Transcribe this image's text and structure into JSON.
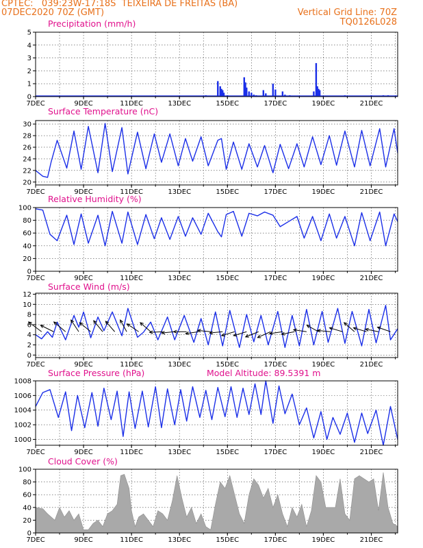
{
  "header": {
    "line1_left": "CPTEC:   039:23W-17:18S  TEIXEIRA DE FREITAS (BA)",
    "line2_left": "07DEC2020 70Z (GMT)",
    "line2_right": "Vertical Grid Line: 70Z",
    "line3_right": "TQ0126L028",
    "model_altitude": "Model Altitude: 89.5391 m"
  },
  "colors": {
    "text": "#e8701a",
    "title": "#e0108c",
    "line": "#1a2ee8",
    "bar": "#1a2ee8",
    "cloud": "#a9a9a9"
  },
  "x_axis": {
    "tick_labels": [
      "7DEC",
      "9DEC",
      "11DEC",
      "13DEC",
      "15DEC",
      "17DEC",
      "19DEC",
      "21DEC"
    ],
    "start_day": 7,
    "end_day": 22.1
  },
  "chart_data": [
    {
      "id": "precip",
      "type": "bar",
      "title": "Precipitation (mm/h)",
      "ylim": [
        0,
        5
      ],
      "yticks": [
        0,
        1,
        2,
        3,
        4,
        5
      ],
      "x_day": [
        14.1,
        14.6,
        14.7,
        14.75,
        14.8,
        14.85,
        15.0,
        15.7,
        15.75,
        15.8,
        15.9,
        16.0,
        16.1,
        16.2,
        16.5,
        16.6,
        16.9,
        17.0,
        17.3,
        17.4,
        17.6,
        18.6,
        18.7,
        18.75,
        18.8,
        18.85,
        19.9,
        21.0,
        21.5,
        21.7
      ],
      "values": [
        0.1,
        1.2,
        0.8,
        0.6,
        0.5,
        0.3,
        0.1,
        1.5,
        1.1,
        0.7,
        0.4,
        0.3,
        0.15,
        0.1,
        0.5,
        0.25,
        1.0,
        0.55,
        0.4,
        0.15,
        0.1,
        0.4,
        2.6,
        0.8,
        0.6,
        0.5,
        0.1,
        0.1,
        0.1,
        0.1
      ]
    },
    {
      "id": "temp",
      "type": "line",
      "title": "Surface Temperature (nC)",
      "ylim": [
        19.5,
        30.6
      ],
      "yticks": [
        20,
        22,
        24,
        26,
        28,
        30
      ],
      "x_day": [
        7.0,
        7.3,
        7.5,
        7.65,
        7.9,
        8.3,
        8.6,
        8.9,
        9.2,
        9.6,
        9.9,
        10.2,
        10.6,
        10.85,
        11.25,
        11.6,
        11.95,
        12.25,
        12.6,
        12.95,
        13.25,
        13.55,
        13.9,
        14.2,
        14.6,
        14.75,
        14.95,
        15.25,
        15.6,
        15.9,
        16.25,
        16.55,
        16.9,
        17.2,
        17.55,
        17.9,
        18.2,
        18.55,
        18.9,
        19.25,
        19.55,
        19.9,
        20.3,
        20.6,
        20.95,
        21.35,
        21.6,
        21.95,
        22.1
      ],
      "values": [
        22,
        21,
        20.8,
        23.5,
        27.2,
        22.4,
        28.8,
        22.2,
        29.6,
        21.6,
        30.1,
        21.8,
        29.4,
        21.4,
        28.6,
        22.3,
        28.3,
        23.4,
        28.3,
        22.8,
        27.5,
        23.6,
        27.8,
        22.8,
        27.2,
        27.5,
        22.2,
        26.9,
        22.2,
        26.6,
        22.6,
        26.3,
        21.6,
        26.5,
        22.3,
        26.6,
        22.6,
        27.8,
        23.0,
        28.0,
        22.9,
        28.8,
        22.6,
        28.9,
        22.8,
        29.2,
        22.6,
        29.2,
        25.0
      ]
    },
    {
      "id": "rh",
      "type": "line",
      "title": "Relative Humidity (%)",
      "ylim": [
        0,
        100
      ],
      "yticks": [
        0,
        20,
        40,
        60,
        80,
        100
      ],
      "x_day": [
        7.0,
        7.3,
        7.6,
        7.9,
        8.3,
        8.6,
        8.9,
        9.2,
        9.6,
        9.9,
        10.2,
        10.6,
        10.85,
        11.25,
        11.6,
        11.95,
        12.25,
        12.6,
        12.95,
        13.25,
        13.55,
        13.9,
        14.2,
        14.6,
        14.75,
        14.95,
        15.25,
        15.6,
        15.9,
        16.25,
        16.55,
        16.9,
        17.2,
        17.55,
        17.9,
        18.2,
        18.55,
        18.9,
        19.25,
        19.55,
        19.9,
        20.3,
        20.6,
        20.95,
        21.35,
        21.6,
        21.95,
        22.1
      ],
      "values": [
        98,
        96,
        58,
        48,
        88,
        42,
        90,
        44,
        88,
        40,
        94,
        44,
        93,
        42,
        89,
        51,
        84,
        50,
        86,
        55,
        84,
        58,
        91,
        62,
        54,
        89,
        94,
        55,
        91,
        87,
        93,
        88,
        70,
        78,
        86,
        52,
        86,
        48,
        90,
        52,
        86,
        40,
        92,
        48,
        93,
        40,
        90,
        78
      ]
    },
    {
      "id": "wind",
      "type": "line",
      "title": "Surface Wind (m/s)",
      "ylim": [
        -0.5,
        12.2
      ],
      "yticks": [
        0,
        2,
        4,
        6,
        8,
        10,
        12
      ],
      "x_day": [
        7.0,
        7.25,
        7.5,
        7.7,
        7.9,
        8.25,
        8.6,
        8.8,
        9.0,
        9.3,
        9.6,
        9.85,
        10.2,
        10.6,
        10.85,
        11.25,
        11.5,
        11.8,
        12.1,
        12.5,
        12.8,
        13.2,
        13.6,
        13.9,
        14.2,
        14.5,
        14.8,
        15.1,
        15.5,
        15.8,
        16.1,
        16.4,
        16.7,
        17.1,
        17.4,
        17.7,
        18.0,
        18.3,
        18.6,
        18.95,
        19.2,
        19.6,
        19.9,
        20.2,
        20.6,
        20.9,
        21.2,
        21.6,
        21.8,
        22.1
      ],
      "values": [
        4.0,
        3.2,
        4.6,
        3.5,
        6.5,
        3.0,
        7.8,
        5.5,
        8.5,
        3.4,
        7.5,
        4.8,
        8.5,
        3.8,
        9.2,
        3.5,
        4.5,
        6.5,
        3.0,
        7.5,
        3.0,
        7.8,
        2.5,
        7.2,
        2.0,
        8.5,
        1.8,
        8.8,
        1.5,
        8.0,
        2.6,
        7.8,
        2.0,
        8.6,
        1.5,
        7.8,
        1.8,
        9.0,
        2.0,
        8.6,
        2.5,
        9.2,
        2.3,
        8.6,
        1.8,
        9.0,
        2.4,
        9.8,
        3.0,
        5.2
      ],
      "arrows": [
        [
          7.25,
          -1,
          -0.75
        ],
        [
          7.75,
          -1,
          -0.5
        ],
        [
          8.25,
          -0.9,
          -0.75
        ],
        [
          8.8,
          -0.6,
          -0.9
        ],
        [
          9.3,
          -0.85,
          -0.7
        ],
        [
          9.8,
          -0.7,
          -0.85
        ],
        [
          10.3,
          -0.7,
          -0.8
        ],
        [
          10.8,
          -0.5,
          -0.9
        ],
        [
          11.3,
          -0.9,
          -0.6
        ],
        [
          11.8,
          -0.8,
          -0.7
        ],
        [
          12.3,
          -1,
          0.05
        ],
        [
          12.8,
          -1,
          0.1
        ],
        [
          13.3,
          -1,
          0
        ],
        [
          13.8,
          -1,
          0.15
        ],
        [
          14.3,
          -1,
          -0.1
        ],
        [
          14.8,
          -1,
          0.1
        ],
        [
          15.3,
          -1,
          0.3
        ],
        [
          15.8,
          -1,
          0.3
        ],
        [
          16.3,
          -1,
          0.4
        ],
        [
          16.8,
          -1,
          0.45
        ],
        [
          17.3,
          -1,
          0.15
        ],
        [
          17.8,
          -1,
          0.2
        ],
        [
          18.3,
          -1,
          -0.15
        ],
        [
          18.8,
          -0.9,
          -0.5
        ],
        [
          19.3,
          -1,
          -0.1
        ],
        [
          19.8,
          -1,
          -0.3
        ],
        [
          20.3,
          -0.8,
          -0.7
        ],
        [
          20.8,
          -1,
          -0.3
        ],
        [
          21.3,
          -1,
          -0.2
        ],
        [
          21.8,
          -1,
          -0.35
        ]
      ]
    },
    {
      "id": "pres",
      "type": "line",
      "title": "Surface Pressure (hPa)",
      "ylim": [
        999.2,
        1008
      ],
      "yticks": [
        1000,
        1002,
        1004,
        1006,
        1008
      ],
      "x_day": [
        7.0,
        7.3,
        7.6,
        7.95,
        8.25,
        8.5,
        8.75,
        9.05,
        9.35,
        9.6,
        9.85,
        10.15,
        10.4,
        10.65,
        10.9,
        11.15,
        11.45,
        11.7,
        12.0,
        12.25,
        12.5,
        12.8,
        13.05,
        13.3,
        13.55,
        13.85,
        14.1,
        14.35,
        14.6,
        14.9,
        15.15,
        15.4,
        15.65,
        15.9,
        16.15,
        16.4,
        16.6,
        16.9,
        17.15,
        17.4,
        17.7,
        18.0,
        18.3,
        18.6,
        18.9,
        19.15,
        19.4,
        19.7,
        20.0,
        20.3,
        20.6,
        20.85,
        21.2,
        21.5,
        21.8,
        22.1
      ],
      "values": [
        1004.5,
        1006.4,
        1006.8,
        1003.0,
        1006.5,
        1001.2,
        1006.0,
        1001.6,
        1006.4,
        1001.8,
        1007.0,
        1002.7,
        1006.6,
        1000.4,
        1006.5,
        1001.5,
        1006.6,
        1001.7,
        1007.2,
        1001.6,
        1006.9,
        1002.0,
        1006.8,
        1002.5,
        1007.2,
        1003.0,
        1006.7,
        1002.7,
        1007.1,
        1003.1,
        1007.2,
        1003.0,
        1007.0,
        1003.4,
        1007.6,
        1003.4,
        1008.2,
        1002.2,
        1007.3,
        1003.5,
        1006.2,
        1002.0,
        1004.3,
        1000.2,
        1003.8,
        1000.0,
        1003.0,
        1000.7,
        1003.6,
        999.6,
        1003.6,
        1000.8,
        1004.0,
        999.2,
        1004.5,
        1000.0
      ]
    },
    {
      "id": "cloud",
      "type": "area",
      "title": "Cloud Cover (%)",
      "ylim": [
        0,
        100
      ],
      "yticks": [
        0,
        20,
        40,
        60,
        80,
        100
      ],
      "x_day": [
        7.0,
        7.3,
        7.5,
        7.8,
        8.0,
        8.2,
        8.4,
        8.6,
        8.8,
        9.0,
        9.2,
        9.4,
        9.6,
        9.8,
        10.0,
        10.2,
        10.4,
        10.55,
        10.7,
        10.9,
        11.0,
        11.15,
        11.3,
        11.5,
        11.7,
        11.9,
        12.1,
        12.3,
        12.5,
        12.7,
        12.9,
        13.1,
        13.3,
        13.5,
        13.7,
        13.9,
        14.1,
        14.3,
        14.5,
        14.7,
        14.9,
        15.1,
        15.3,
        15.5,
        15.7,
        15.9,
        16.1,
        16.3,
        16.5,
        16.7,
        16.9,
        17.1,
        17.3,
        17.5,
        17.7,
        17.9,
        18.1,
        18.3,
        18.5,
        18.7,
        18.9,
        19.1,
        19.3,
        19.5,
        19.7,
        19.9,
        20.1,
        20.3,
        20.5,
        20.7,
        20.9,
        21.1,
        21.3,
        21.5,
        21.7,
        21.9,
        22.1
      ],
      "values": [
        40,
        38,
        30,
        20,
        40,
        25,
        35,
        20,
        30,
        5,
        5,
        15,
        20,
        10,
        30,
        35,
        45,
        90,
        92,
        70,
        35,
        10,
        25,
        30,
        20,
        10,
        35,
        30,
        20,
        50,
        90,
        55,
        25,
        40,
        15,
        30,
        10,
        5,
        45,
        80,
        70,
        90,
        60,
        30,
        15,
        60,
        85,
        75,
        55,
        70,
        40,
        60,
        30,
        10,
        40,
        25,
        45,
        10,
        35,
        90,
        80,
        40,
        40,
        40,
        85,
        30,
        20,
        85,
        90,
        85,
        80,
        85,
        35,
        95,
        40,
        15,
        10
      ]
    }
  ]
}
